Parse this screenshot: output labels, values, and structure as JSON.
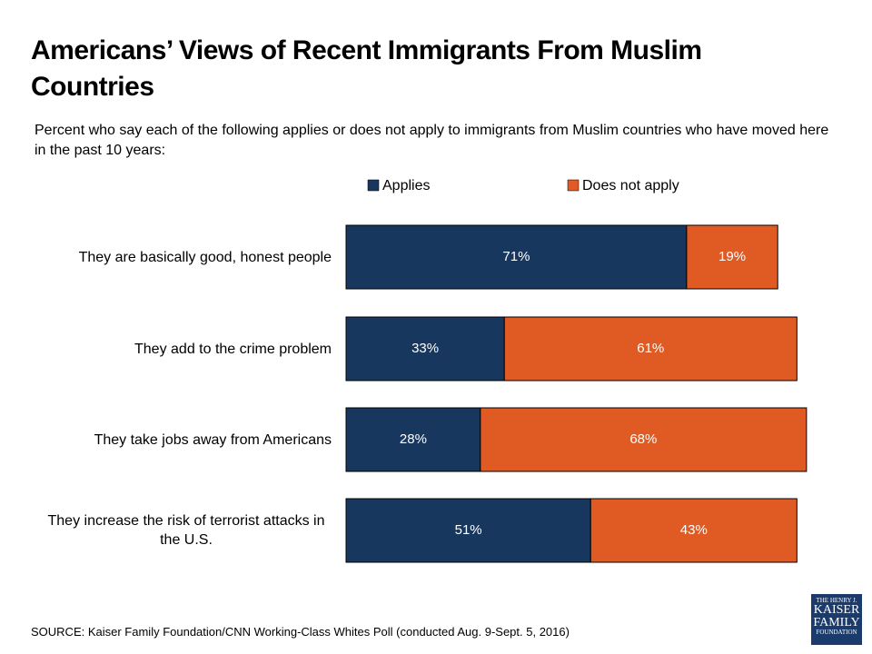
{
  "chart_data": {
    "type": "stacked-bar-horizontal",
    "title": "Americans’ Views of Recent Immigrants From Muslim Countries",
    "subtitle": "Percent who say each of the following applies or does not apply to immigrants from Muslim countries who have moved here in the past 10 years:",
    "categories": [
      "They are basically good, honest people",
      "They add to the crime problem",
      "They take jobs away from Americans",
      "They increase the risk of terrorist attacks in the U.S."
    ],
    "series": [
      {
        "name": "Applies",
        "color": "#17375e",
        "values": [
          71,
          33,
          28,
          51
        ],
        "value_labels": [
          "71%",
          "33%",
          "28%",
          "51%"
        ]
      },
      {
        "name": "Does not apply",
        "color": "#e05a24",
        "values": [
          19,
          61,
          68,
          43
        ],
        "value_labels": [
          "19%",
          "61%",
          "68%",
          "43%"
        ]
      }
    ],
    "xlim": [
      0,
      100
    ],
    "source": "SOURCE: Kaiser Family Foundation/CNN Working-Class Whites Poll (conducted Aug. 9-Sept. 5, 2016)"
  },
  "logo": {
    "lines": [
      "THE HENRY J.",
      "KAISER",
      "FAMILY",
      "FOUNDATION"
    ]
  }
}
